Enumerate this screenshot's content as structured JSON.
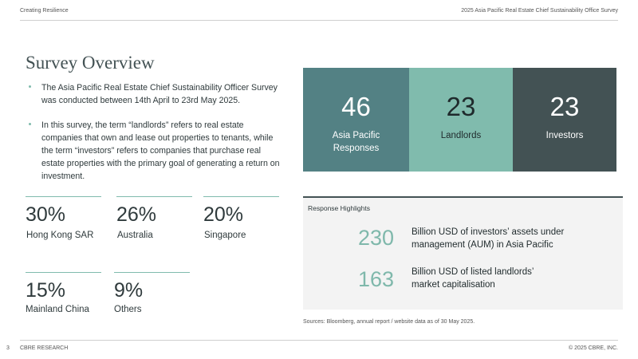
{
  "header": {
    "left": "Creating Resilience",
    "right": "2025 Asia Pacific Real Estate Chief Sustainability Office Survey"
  },
  "title": "Survey Overview",
  "bullets": [
    "The Asia Pacific Real Estate Chief Sustainability Officer Survey was conducted between 14th April to 23rd May 2025.",
    "In this survey,  the term “landlords” refers to real estate companies that own and lease out properties to tenants, while the term “investors” refers to companies that purchase real estate properties with the primary goal of generating a return on investment."
  ],
  "shares": [
    {
      "value": "30%",
      "label": "Hong Kong SAR"
    },
    {
      "value": "26%",
      "label": "Australia"
    },
    {
      "value": "20%",
      "label": "Singapore"
    },
    {
      "value": "15%",
      "label": "Mainland China"
    },
    {
      "value": "9%",
      "label": "Others"
    }
  ],
  "responses": [
    {
      "value": "46",
      "label": "Asia Pacific Responses"
    },
    {
      "value": "23",
      "label": "Landlords"
    },
    {
      "value": "23",
      "label": "Investors"
    }
  ],
  "highlights": {
    "title": "Response Highlights",
    "items": [
      {
        "value": "230",
        "label": "Billion USD of investors’ assets under management (AUM) in Asia Pacific"
      },
      {
        "value": "163",
        "label": "Billion USD of listed landlords’ market capitalisation"
      }
    ]
  },
  "source": "Sources: Bloomberg, annual report / website data as of 30 May 2025.",
  "footer": {
    "page": "3",
    "left": "CBRE RESEARCH",
    "right": "© 2025 CBRE, INC."
  }
}
